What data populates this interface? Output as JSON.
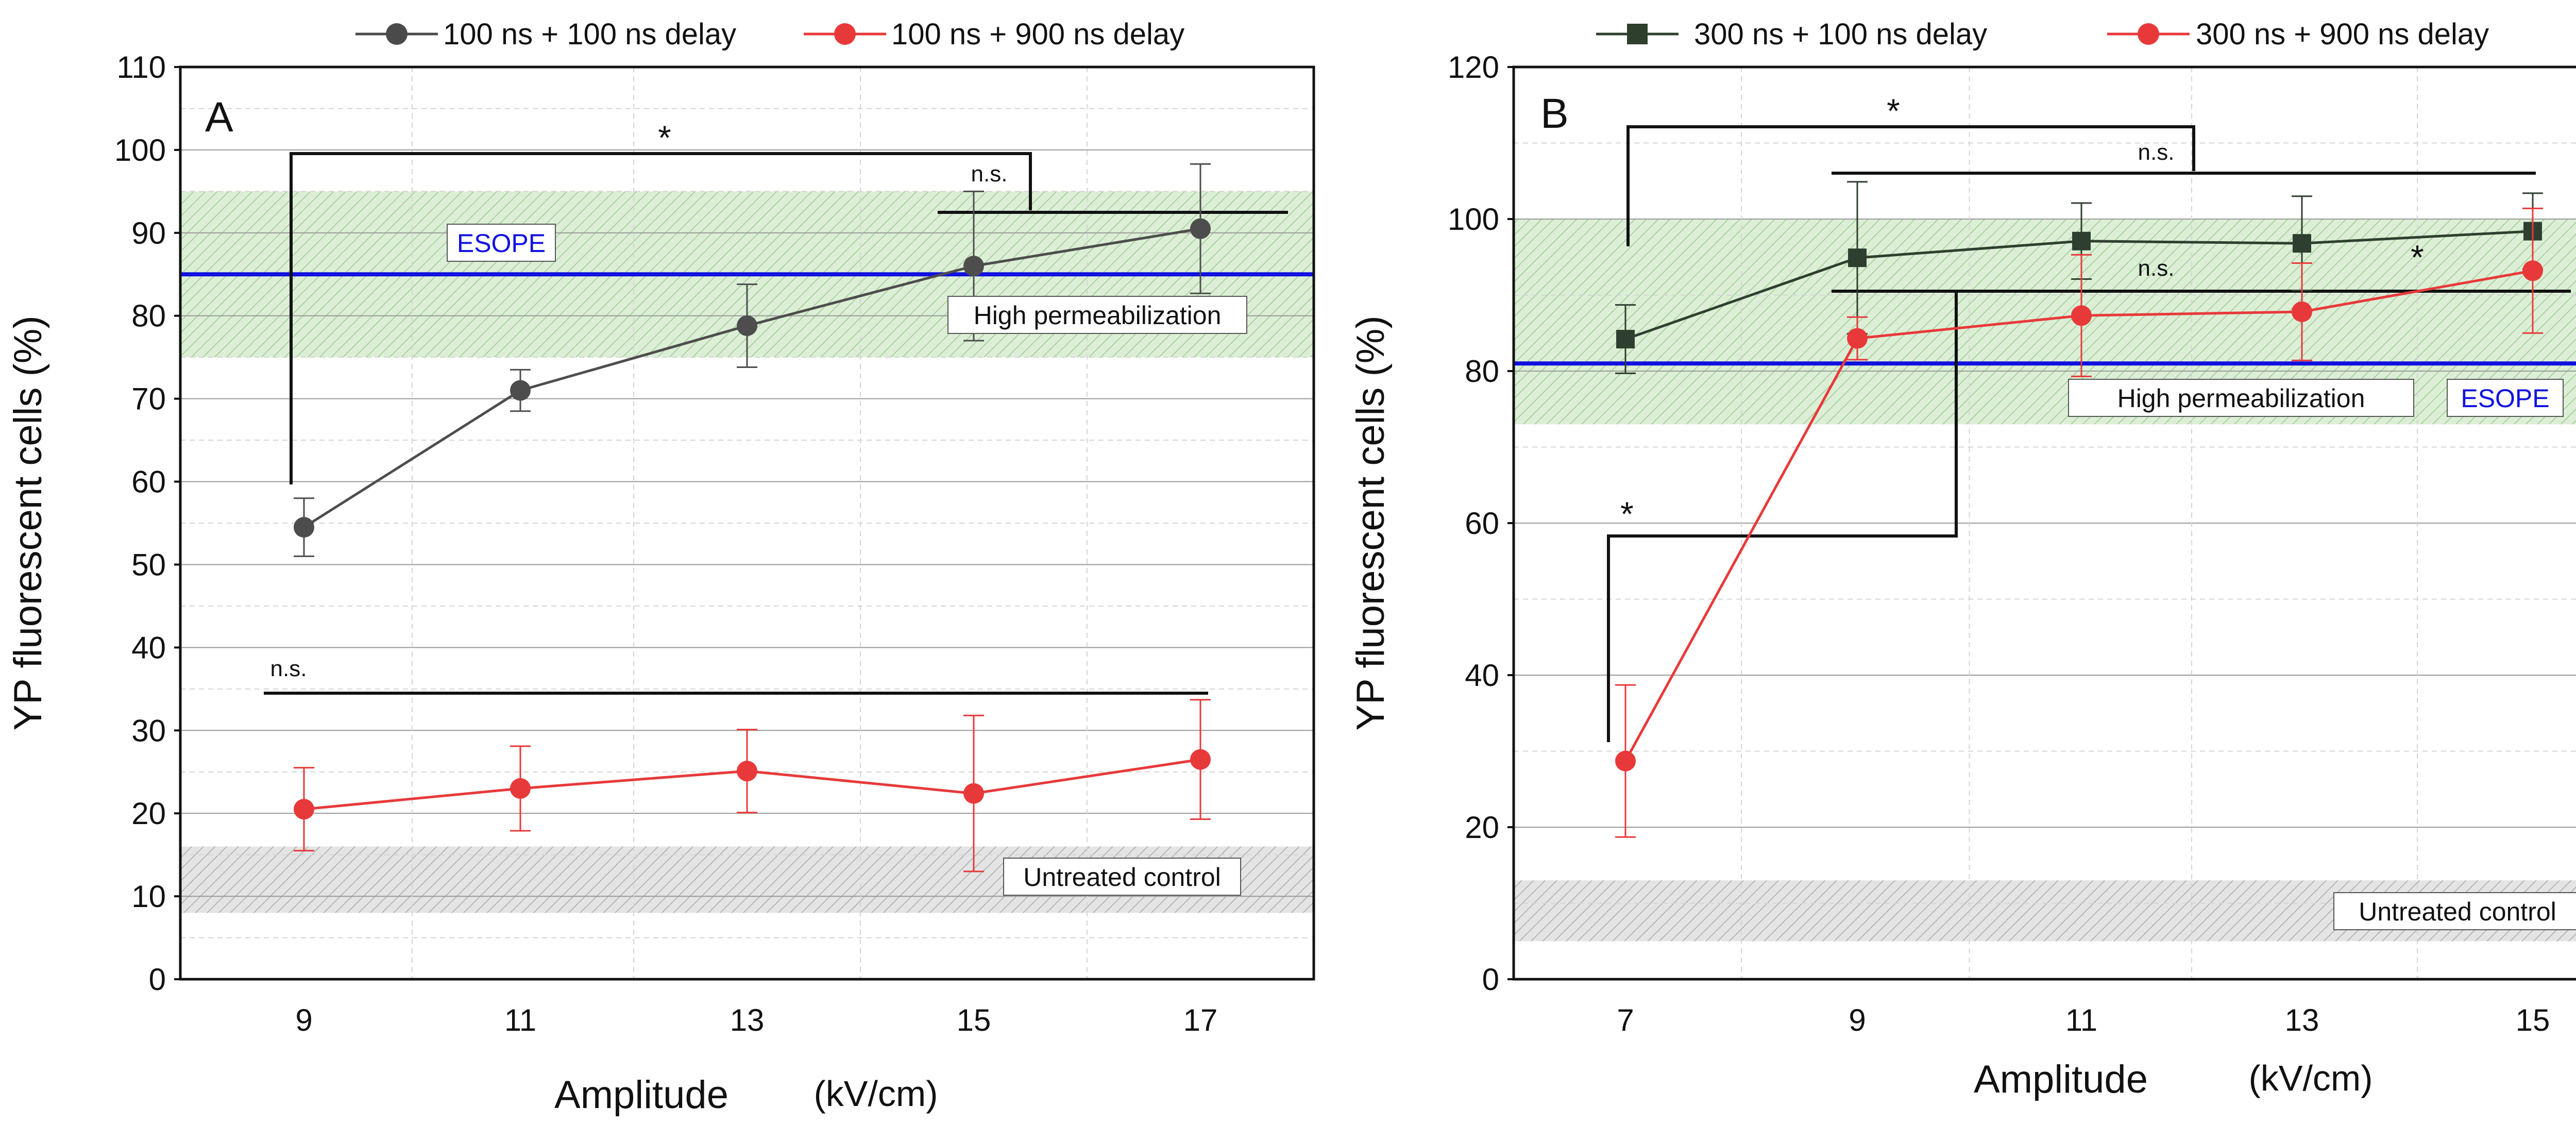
{
  "legend_left": [
    {
      "label": "100 ns  + 100 ns delay",
      "color": "#4a4a4a",
      "marker": "circle"
    },
    {
      "label": "100 ns  + 900 ns delay",
      "color": "#e8393a",
      "marker": "circle"
    }
  ],
  "legend_right": [
    {
      "label": "300 ns + 100 ns delay",
      "color": "#2e3f2e",
      "marker": "square"
    },
    {
      "label": "300 ns  + 900 ns delay",
      "color": "#e8393a",
      "marker": "circle"
    }
  ],
  "colors": {
    "dark": "#3a463a",
    "red": "#e8393a",
    "esope": "#1010e0",
    "green_band": "#dcefd6",
    "gray_band": "#dedede"
  },
  "chart_data": [
    {
      "type": "line",
      "panel": "A",
      "x": [
        9,
        11,
        13,
        15,
        17
      ],
      "xlabel_main": "Amplitude",
      "xlabel_unit": "(kV/cm)",
      "ylabel": "YP fluorescent cells (%)",
      "ylim": [
        0,
        110
      ],
      "yticks": [
        0,
        10,
        20,
        30,
        40,
        50,
        60,
        70,
        80,
        90,
        100,
        110
      ],
      "series": [
        {
          "name": "100 ns  + 100 ns delay",
          "color": "#4d4d4d",
          "marker": "circle",
          "values": [
            54.5,
            71,
            78.8,
            86,
            90.5
          ],
          "err_up": [
            3.5,
            2.5,
            5,
            9,
            7.8
          ],
          "err_down": [
            3.5,
            2.5,
            5,
            9,
            7.8
          ]
        },
        {
          "name": "100 ns  + 900 ns delay",
          "color": "#e8393a",
          "marker": "circle",
          "values": [
            20.5,
            23,
            25.1,
            22.4,
            26.5
          ],
          "err_up": [
            5,
            5.1,
            5,
            9.4,
            7.2
          ],
          "err_down": [
            5,
            5.1,
            5,
            9.4,
            7.2
          ]
        }
      ],
      "bands": [
        {
          "label": "High permeabilization",
          "range": [
            75,
            95
          ],
          "kind": "green"
        },
        {
          "label": "Untreated control",
          "range": [
            8,
            16
          ],
          "kind": "gray"
        }
      ],
      "reference_line": {
        "label": "ESOPE",
        "value": 85
      },
      "annotations": [
        {
          "text": "*"
        },
        {
          "text": "n.s."
        },
        {
          "text": "n.s."
        }
      ]
    },
    {
      "type": "line",
      "panel": "B",
      "x": [
        7,
        9,
        11,
        13,
        15
      ],
      "xlabel_main": "Amplitude",
      "xlabel_unit": "(kV/cm)",
      "ylabel": "YP fluorescent cells (%)",
      "ylim": [
        0,
        120
      ],
      "yticks": [
        0,
        20,
        40,
        60,
        80,
        100,
        120
      ],
      "series": [
        {
          "name": "300 ns + 100 ns delay",
          "color": "#2f3f2f",
          "marker": "square",
          "values": [
            84.2,
            94.9,
            97.1,
            96.8,
            98.4
          ],
          "err_up": [
            4.5,
            10,
            5,
            6.2,
            5
          ],
          "err_down": [
            4.5,
            10,
            5,
            6.2,
            5
          ]
        },
        {
          "name": "300 ns  + 900 ns delay",
          "color": "#e8393a",
          "marker": "circle",
          "values": [
            28.7,
            84.3,
            87.3,
            87.8,
            93.2
          ],
          "err_up": [
            10,
            2.8,
            8,
            6.4,
            8.2
          ],
          "err_down": [
            10,
            2.8,
            8,
            6.4,
            8.2
          ]
        }
      ],
      "bands": [
        {
          "label": "High permeabilization",
          "range": [
            73,
            100
          ],
          "kind": "green"
        },
        {
          "label": "Untreated control",
          "range": [
            5,
            13
          ],
          "kind": "gray"
        }
      ],
      "reference_line": {
        "label": "ESOPE",
        "value": 81
      },
      "annotations": [
        {
          "text": "*"
        },
        {
          "text": "n.s."
        },
        {
          "text": "n.s."
        },
        {
          "text": "*"
        },
        {
          "text": "*"
        }
      ]
    }
  ]
}
